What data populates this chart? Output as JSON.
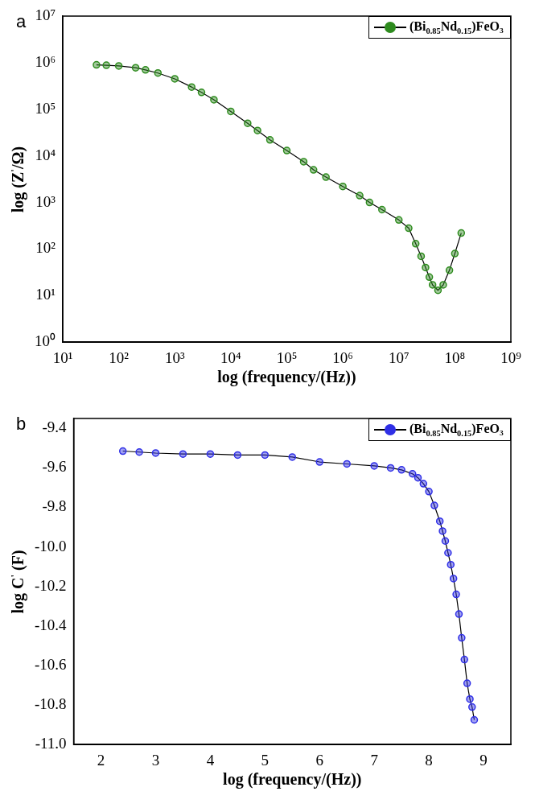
{
  "chart_data": [
    {
      "type": "line",
      "annotations": [
        "a"
      ],
      "xlabel": "log (frequency/(Hz))",
      "ylabel": "log (Z$^{'}$/Ω)",
      "log": "xy",
      "legend": "top right",
      "marker": "circle",
      "line_style": "solid",
      "xlim": [
        10,
        1000000000
      ],
      "ylim": [
        1,
        10000000
      ],
      "xticks": [
        {
          "value": 10,
          "label": "10¹"
        },
        {
          "value": 100,
          "label": "10²"
        },
        {
          "value": 1000,
          "label": "10³"
        },
        {
          "value": 10000,
          "label": "10⁴"
        },
        {
          "value": 100000,
          "label": "10⁵"
        },
        {
          "value": 1000000,
          "label": "10⁶"
        },
        {
          "value": 10000000,
          "label": "10⁷"
        },
        {
          "value": 100000000,
          "label": "10⁸"
        },
        {
          "value": 1000000000,
          "label": "10⁹"
        }
      ],
      "yticks": [
        {
          "value": 1,
          "label": "10⁰"
        },
        {
          "value": 10,
          "label": "10¹"
        },
        {
          "value": 100,
          "label": "10²"
        },
        {
          "value": 1000,
          "label": "10³"
        },
        {
          "value": 10000,
          "label": "10⁴"
        },
        {
          "value": 100000,
          "label": "10⁵"
        },
        {
          "value": 1000000,
          "label": "10⁶"
        },
        {
          "value": 10000000,
          "label": "10⁷"
        }
      ],
      "x": [
        40,
        60,
        100,
        200,
        300,
        500,
        1000,
        2000,
        3000,
        5000,
        10000,
        20000,
        30000,
        50000,
        100000,
        200000,
        300000,
        500000,
        1000000,
        2000000,
        3000000,
        5000000,
        10000000,
        15000000,
        20000000,
        25000000,
        30000000,
        35000000,
        40000000,
        50000000,
        62000000,
        80000000,
        100000000,
        130000000
      ],
      "series": [
        {
          "name": "(Bi$_{0.85}$Nd$_{0.15}$)FeO₃",
          "color": "#2e8b1e",
          "values": [
            900000,
            880000,
            850000,
            780000,
            700000,
            600000,
            450000,
            300000,
            230000,
            160000,
            90000,
            50000,
            35000,
            22000,
            13000,
            7500,
            5000,
            3500,
            2200,
            1400,
            1000,
            700,
            420,
            280,
            130,
            70,
            40,
            25,
            17,
            13,
            17,
            35,
            80,
            220
          ]
        }
      ]
    },
    {
      "type": "line",
      "annotations": [
        "b"
      ],
      "xlabel": "log (frequency/(Hz))",
      "ylabel": "log C$^{'}$ (F)",
      "legend": "top right",
      "marker": "circle",
      "line_style": "solid",
      "xlim": [
        1.5,
        9.5
      ],
      "ylim": [
        -11.0,
        -9.35
      ],
      "xticks": [
        2,
        3,
        4,
        5,
        6,
        7,
        8,
        9
      ],
      "yticks": [
        {
          "value": -11,
          "label": "-11.0"
        },
        -10.8,
        -10.6,
        -10.4,
        -10.2,
        {
          "value": -10,
          "label": "-10.0"
        },
        -9.8,
        -9.6,
        -9.4
      ],
      "x": [
        2.4,
        2.7,
        3,
        3.5,
        4,
        4.5,
        5,
        5.5,
        6,
        6.5,
        7,
        7.3,
        7.5,
        7.7,
        7.8,
        7.9,
        8,
        8.1,
        8.2,
        8.25,
        8.3,
        8.35,
        8.4,
        8.45,
        8.5,
        8.55,
        8.6,
        8.65,
        8.7,
        8.75,
        8.79,
        8.83
      ],
      "series": [
        {
          "name": "(Bi$_{0.85}$Nd$_{0.15}$)FeO₃",
          "color": "#2f2fe6",
          "values": [
            -9.515,
            -9.52,
            -9.525,
            -9.53,
            -9.53,
            -9.535,
            -9.535,
            -9.545,
            -9.57,
            -9.58,
            -9.59,
            -9.6,
            -9.61,
            -9.63,
            -9.65,
            -9.68,
            -9.72,
            -9.79,
            -9.87,
            -9.92,
            -9.97,
            -10.03,
            -10.09,
            -10.16,
            -10.24,
            -10.34,
            -10.46,
            -10.57,
            -10.69,
            -10.77,
            -10.81,
            -10.875
          ]
        }
      ]
    }
  ]
}
